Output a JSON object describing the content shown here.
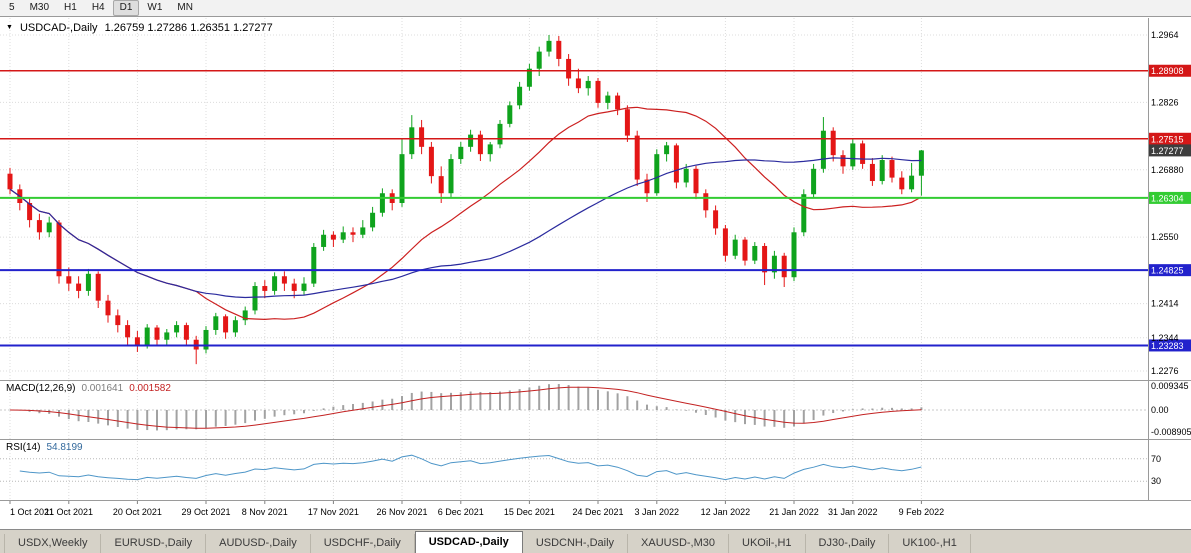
{
  "toolbar": {
    "periods": [
      "5",
      "M30",
      "H1",
      "H4",
      "D1",
      "W1",
      "MN"
    ],
    "active": "D1"
  },
  "chart": {
    "title_symbol": "USDCAD-,Daily",
    "title_ohlc": "1.26759 1.27286 1.26351 1.27277"
  },
  "macd": {
    "name_label": "MACD(12,26,9)",
    "value_main": "0.001641",
    "value_signal": "0.001582",
    "axis_labels": [
      "0.009345",
      "0.00",
      "-0.008905"
    ]
  },
  "rsi": {
    "name_label": "RSI(14)",
    "value": "54.8199",
    "axis_labels": [
      "70",
      "30"
    ],
    "levels": [
      70,
      30
    ]
  },
  "tabs": {
    "items": [
      "USDX,Weekly",
      "EURUSD-,Daily",
      "AUDUSD-,Daily",
      "USDCHF-,Daily",
      "USDCAD-,Daily",
      "USDCNH-,Daily",
      "XAUUSD-,M30",
      "UKOil-,H1",
      "DJ30-,Daily",
      "UK100-,H1"
    ],
    "active_index": 4
  },
  "chart_data": {
    "type": "candlestick",
    "symbol": "USDCAD",
    "timeframe": "Daily",
    "current_bar": {
      "open": 1.26759,
      "high": 1.27286,
      "low": 1.26351,
      "close": 1.27277
    },
    "colors": {
      "up": "#0fa31d",
      "down": "#e41616",
      "ma_fast": "#cc2020",
      "ma_slow": "#2b2b9e",
      "macd_hist": "#a2a2a2",
      "macd_signal": "#c32222",
      "rsi": "#4e96c8",
      "level_red": "#d41717",
      "level_green": "#33cc33",
      "level_blue": "#2222cc",
      "current_badge": "#3d3d3d"
    },
    "y_ticks": [
      {
        "text": "1.2964",
        "price": 1.2964
      },
      {
        "text": "1.2826",
        "price": 1.2826
      },
      {
        "text": "1.26880",
        "price": 1.2688
      },
      {
        "text": "1.2550",
        "price": 1.255
      },
      {
        "text": "1.2414",
        "price": 1.2414
      },
      {
        "text": "1.2344",
        "price": 1.2344
      },
      {
        "text": "1.2276",
        "price": 1.2276
      }
    ],
    "levels": [
      {
        "name": "resistance-upper",
        "text": "1.28908",
        "price": 1.28908,
        "color": "#d41717",
        "width": 1.5
      },
      {
        "name": "resistance-lower",
        "text": "1.27515",
        "price": 1.27515,
        "color": "#d41717",
        "width": 1.5
      },
      {
        "name": "support-green",
        "text": "1.26304",
        "price": 1.26304,
        "color": "#33cc33",
        "width": 2
      },
      {
        "name": "support-blue-upper",
        "text": "1.24825",
        "price": 1.24825,
        "color": "#2222cc",
        "width": 2
      },
      {
        "name": "support-blue-lower",
        "text": "1.23283",
        "price": 1.23283,
        "color": "#2222cc",
        "width": 2
      }
    ],
    "current_price_badge": {
      "text": "1.27277",
      "price": 1.27277,
      "color": "#3d3d3d"
    },
    "x_ticks": [
      {
        "label": "1 Oct 2021",
        "i": 0
      },
      {
        "label": "11 Oct 2021",
        "i": 6
      },
      {
        "label": "20 Oct 2021",
        "i": 13
      },
      {
        "label": "29 Oct 2021",
        "i": 20
      },
      {
        "label": "8 Nov 2021",
        "i": 26
      },
      {
        "label": "17 Nov 2021",
        "i": 33
      },
      {
        "label": "26 Nov 2021",
        "i": 40
      },
      {
        "label": "6 Dec 2021",
        "i": 46
      },
      {
        "label": "15 Dec 2021",
        "i": 53
      },
      {
        "label": "24 Dec 2021",
        "i": 60
      },
      {
        "label": "3 Jan 2022",
        "i": 66
      },
      {
        "label": "12 Jan 2022",
        "i": 73
      },
      {
        "label": "21 Jan 2022",
        "i": 80
      },
      {
        "label": "31 Jan 2022",
        "i": 86
      },
      {
        "label": "9 Feb 2022",
        "i": 93
      }
    ],
    "overlays": [
      {
        "name": "ma-fast",
        "type": "sma",
        "period": 20
      },
      {
        "name": "ma-slow",
        "type": "sma",
        "period": 45
      }
    ],
    "indicators": [
      {
        "name": "MACD",
        "params": [
          12,
          26,
          9
        ],
        "values": [
          0.001641,
          0.001582
        ]
      },
      {
        "name": "RSI",
        "params": [
          14
        ],
        "value": 54.8199,
        "levels": [
          70,
          30
        ]
      }
    ],
    "candles": [
      [
        1.268,
        1.2692,
        1.2638,
        1.2648
      ],
      [
        1.2648,
        1.2658,
        1.2605,
        1.262
      ],
      [
        1.262,
        1.2632,
        1.257,
        1.2585
      ],
      [
        1.2585,
        1.2598,
        1.2545,
        1.256
      ],
      [
        1.256,
        1.2592,
        1.255,
        1.258
      ],
      [
        1.258,
        1.2585,
        1.2455,
        1.247
      ],
      [
        1.247,
        1.2488,
        1.244,
        1.2455
      ],
      [
        1.2455,
        1.247,
        1.2425,
        1.244
      ],
      [
        1.244,
        1.2485,
        1.243,
        1.2475
      ],
      [
        1.2475,
        1.248,
        1.2405,
        1.242
      ],
      [
        1.242,
        1.2432,
        1.2375,
        1.239
      ],
      [
        1.239,
        1.2402,
        1.2355,
        1.237
      ],
      [
        1.237,
        1.238,
        1.233,
        1.2345
      ],
      [
        1.2345,
        1.2358,
        1.2315,
        1.233
      ],
      [
        1.233,
        1.2372,
        1.2322,
        1.2365
      ],
      [
        1.2365,
        1.237,
        1.2328,
        1.234
      ],
      [
        1.234,
        1.2362,
        1.233,
        1.2355
      ],
      [
        1.2355,
        1.2378,
        1.2345,
        1.237
      ],
      [
        1.237,
        1.2375,
        1.2328,
        1.234
      ],
      [
        1.234,
        1.2348,
        1.229,
        1.232
      ],
      [
        1.232,
        1.2368,
        1.2312,
        1.236
      ],
      [
        1.236,
        1.2395,
        1.235,
        1.2388
      ],
      [
        1.2388,
        1.2392,
        1.2342,
        1.2355
      ],
      [
        1.2355,
        1.2388,
        1.2346,
        1.238
      ],
      [
        1.238,
        1.2408,
        1.237,
        1.24
      ],
      [
        1.24,
        1.2458,
        1.2392,
        1.245
      ],
      [
        1.245,
        1.2462,
        1.2425,
        1.244
      ],
      [
        1.244,
        1.2478,
        1.2432,
        1.247
      ],
      [
        1.247,
        1.248,
        1.244,
        1.2455
      ],
      [
        1.2455,
        1.2465,
        1.2425,
        1.244
      ],
      [
        1.244,
        1.2468,
        1.2432,
        1.2455
      ],
      [
        1.2455,
        1.2538,
        1.2448,
        1.253
      ],
      [
        1.253,
        1.2565,
        1.2522,
        1.2555
      ],
      [
        1.2555,
        1.2562,
        1.253,
        1.2545
      ],
      [
        1.2545,
        1.2572,
        1.2538,
        1.256
      ],
      [
        1.256,
        1.257,
        1.254,
        1.2555
      ],
      [
        1.2555,
        1.2585,
        1.2548,
        1.257
      ],
      [
        1.257,
        1.2612,
        1.2562,
        1.26
      ],
      [
        1.26,
        1.265,
        1.2592,
        1.264
      ],
      [
        1.264,
        1.2648,
        1.2605,
        1.262
      ],
      [
        1.262,
        1.275,
        1.2612,
        1.272
      ],
      [
        1.272,
        1.28,
        1.271,
        1.2775
      ],
      [
        1.2775,
        1.279,
        1.272,
        1.2735
      ],
      [
        1.2735,
        1.2745,
        1.266,
        1.2675
      ],
      [
        1.2675,
        1.2695,
        1.262,
        1.264
      ],
      [
        1.264,
        1.272,
        1.2632,
        1.271
      ],
      [
        1.271,
        1.2745,
        1.27,
        1.2735
      ],
      [
        1.2735,
        1.277,
        1.2725,
        1.276
      ],
      [
        1.276,
        1.2768,
        1.2706,
        1.272
      ],
      [
        1.272,
        1.2745,
        1.2705,
        1.274
      ],
      [
        1.274,
        1.279,
        1.2732,
        1.2782
      ],
      [
        1.2782,
        1.2828,
        1.2775,
        1.282
      ],
      [
        1.282,
        1.2868,
        1.2812,
        1.2858
      ],
      [
        1.2858,
        1.2905,
        1.285,
        1.2895
      ],
      [
        1.2895,
        1.294,
        1.288,
        1.293
      ],
      [
        1.293,
        1.2964,
        1.292,
        1.2952
      ],
      [
        1.2952,
        1.2962,
        1.29,
        1.2915
      ],
      [
        1.2915,
        1.2925,
        1.286,
        1.2875
      ],
      [
        1.2875,
        1.2895,
        1.2845,
        1.2855
      ],
      [
        1.2855,
        1.288,
        1.284,
        1.287
      ],
      [
        1.287,
        1.2876,
        1.2815,
        1.2825
      ],
      [
        1.2825,
        1.2848,
        1.2812,
        1.284
      ],
      [
        1.284,
        1.2846,
        1.28,
        1.2812
      ],
      [
        1.2812,
        1.282,
        1.2745,
        1.2758
      ],
      [
        1.2758,
        1.2768,
        1.2655,
        1.2668
      ],
      [
        1.2668,
        1.268,
        1.2622,
        1.264
      ],
      [
        1.264,
        1.273,
        1.2635,
        1.272
      ],
      [
        1.272,
        1.2745,
        1.2705,
        1.2738
      ],
      [
        1.2738,
        1.2742,
        1.265,
        1.2662
      ],
      [
        1.2662,
        1.27,
        1.2652,
        1.269
      ],
      [
        1.269,
        1.2696,
        1.2628,
        1.264
      ],
      [
        1.264,
        1.2648,
        1.259,
        1.2605
      ],
      [
        1.2605,
        1.2615,
        1.2555,
        1.2568
      ],
      [
        1.2568,
        1.2575,
        1.25,
        1.2512
      ],
      [
        1.2512,
        1.2555,
        1.2505,
        1.2545
      ],
      [
        1.2545,
        1.255,
        1.2492,
        1.2502
      ],
      [
        1.2502,
        1.254,
        1.2495,
        1.2532
      ],
      [
        1.2532,
        1.2538,
        1.2452,
        1.2478
      ],
      [
        1.2478,
        1.2522,
        1.2465,
        1.2512
      ],
      [
        1.2512,
        1.2518,
        1.2448,
        1.2468
      ],
      [
        1.2468,
        1.257,
        1.246,
        1.256
      ],
      [
        1.256,
        1.2648,
        1.2552,
        1.2638
      ],
      [
        1.2638,
        1.27,
        1.263,
        1.269
      ],
      [
        1.269,
        1.2796,
        1.2682,
        1.2768
      ],
      [
        1.2768,
        1.2775,
        1.2705,
        1.2718
      ],
      [
        1.2718,
        1.2728,
        1.268,
        1.2695
      ],
      [
        1.2695,
        1.2752,
        1.2688,
        1.2742
      ],
      [
        1.2742,
        1.2748,
        1.269,
        1.27
      ],
      [
        1.27,
        1.2712,
        1.2655,
        1.2665
      ],
      [
        1.2665,
        1.2718,
        1.2658,
        1.2708
      ],
      [
        1.2708,
        1.2715,
        1.2662,
        1.2672
      ],
      [
        1.2672,
        1.2685,
        1.2638,
        1.2648
      ],
      [
        1.2648,
        1.2702,
        1.2642,
        1.2676
      ],
      [
        1.26759,
        1.27286,
        1.26351,
        1.27277
      ]
    ]
  }
}
